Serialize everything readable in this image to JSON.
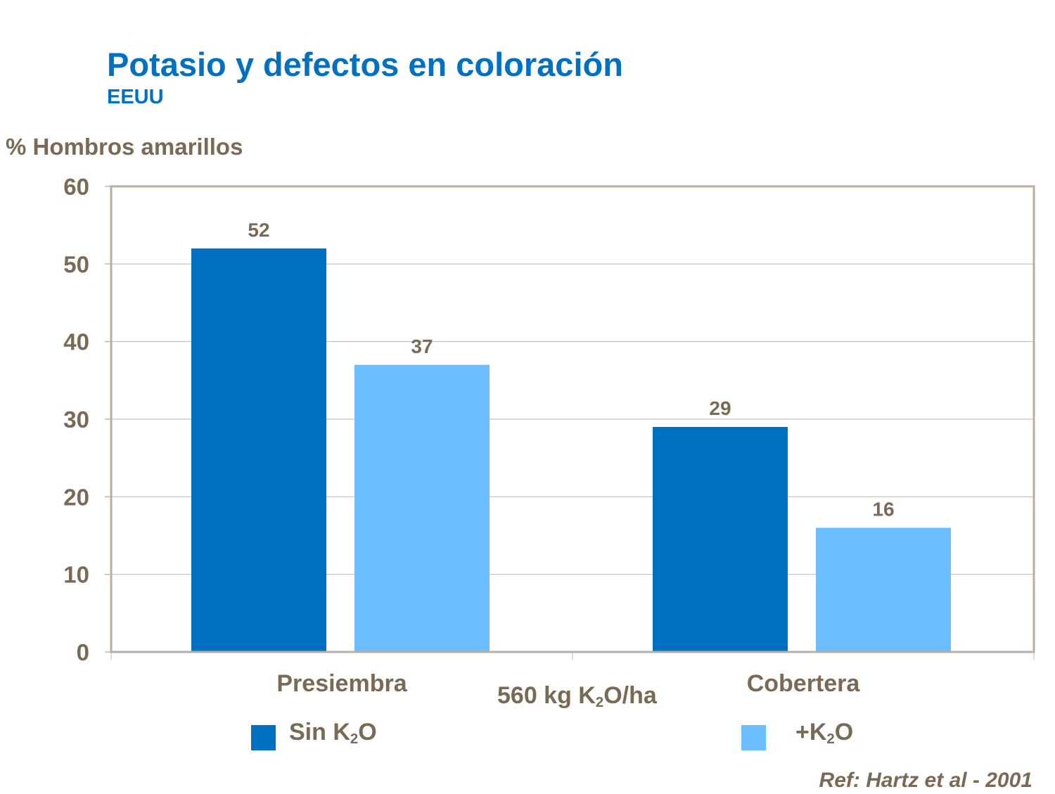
{
  "title": "Potasio y defectos en coloración",
  "subtitle": "EEUU",
  "reference": "Ref: Hartz et al - 2001",
  "colors": {
    "series1": "#0070C0",
    "series2": "#6BBEFF",
    "text": "#7A6A55",
    "title": "#0070C0",
    "frame": "#B8ADA0",
    "grid": "#BFB6AA"
  },
  "chart_data": {
    "type": "bar",
    "title": "Potasio y defectos en coloración",
    "subtitle": "EEUU",
    "ylabel": "% Hombros amarillos",
    "xlabel": {
      "pre": "560 kg K",
      "sub": "2",
      "post": "O/ha"
    },
    "categories": [
      "Presiembra",
      "Cobertera"
    ],
    "ylim": [
      0,
      60
    ],
    "yticks": [
      "0",
      "10",
      "20",
      "30",
      "40",
      "50",
      "60"
    ],
    "grid": true,
    "legend_placement": "bottom",
    "series": [
      {
        "name": {
          "pre": "Sin K",
          "sub": "2",
          "post": "O"
        },
        "values": [
          52,
          29
        ],
        "labels": [
          "52",
          "29"
        ]
      },
      {
        "name": {
          "pre": "+K",
          "sub": "2",
          "post": "O"
        },
        "values": [
          37,
          16
        ],
        "labels": [
          "37",
          "16"
        ]
      }
    ]
  }
}
